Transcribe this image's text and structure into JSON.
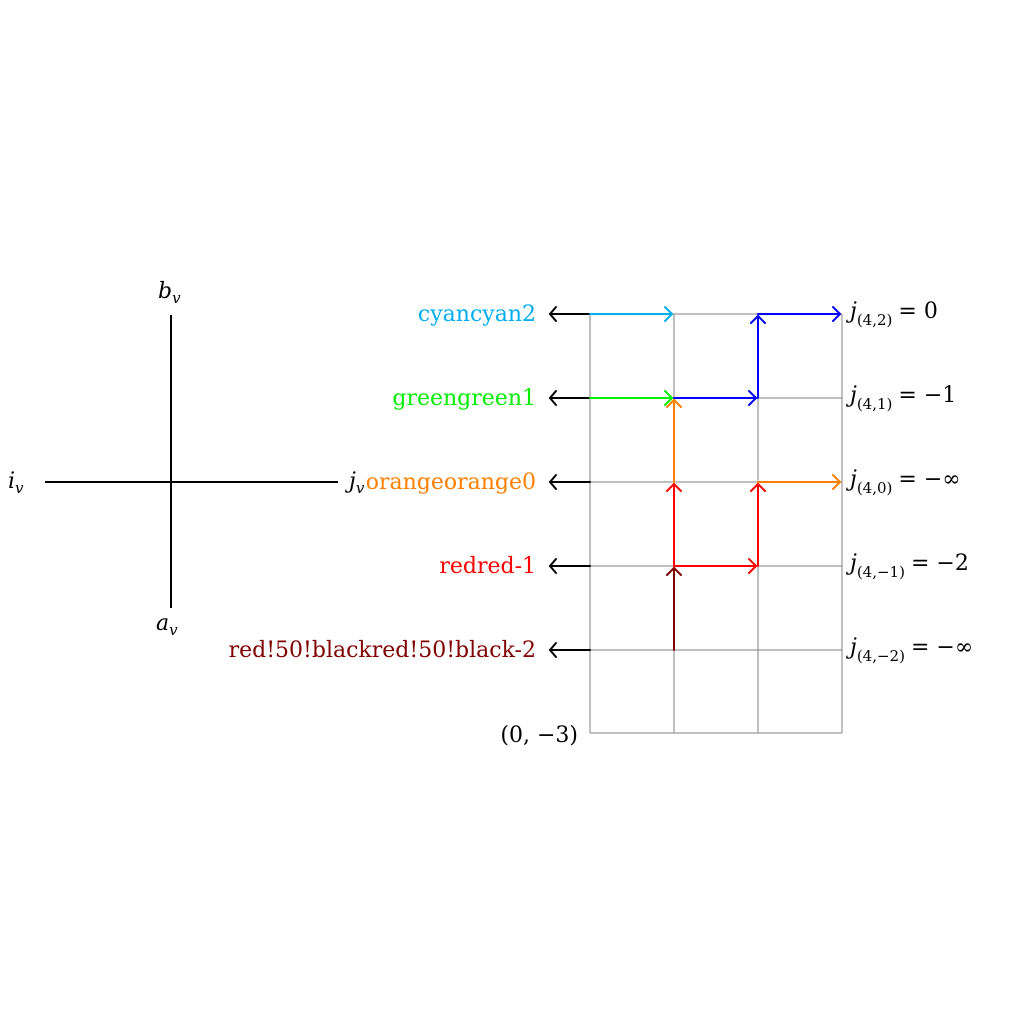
{
  "vertex": {
    "top_label": "b",
    "top_sub": "v",
    "bottom_label": "a",
    "bottom_sub": "v",
    "left_label": "i",
    "left_sub": "v",
    "right_label": "j",
    "right_sub": "v"
  },
  "grid_origin_label": "(0, −3)",
  "row_labels": [
    {
      "text": "cyancyan2",
      "color": "#00aeef"
    },
    {
      "text": "greengreen1",
      "color": "#00ee00"
    },
    {
      "text": "orangeorange0",
      "color": "#ff8000"
    },
    {
      "text": "redred-1",
      "color": "#ff0000"
    },
    {
      "text": "red!50!blackred!50!black-2",
      "color": "#800000"
    }
  ],
  "right_labels": [
    {
      "base": "j",
      "sub": "(4,2)",
      "rhs": "= 0"
    },
    {
      "base": "j",
      "sub": "(4,1)",
      "rhs": "= −1"
    },
    {
      "base": "j",
      "sub": "(4,0)",
      "rhs": "= −∞"
    },
    {
      "base": "j",
      "sub": "(4,−1)",
      "rhs": "= −2"
    },
    {
      "base": "j",
      "sub": "(4,−2)",
      "rhs": "= −∞"
    }
  ],
  "colors": {
    "cyan": "#00aeef",
    "green": "#00ee00",
    "orange": "#ff8000",
    "red": "#ff0000",
    "darkred": "#800000",
    "blue": "#0000ff",
    "grid": "#808080",
    "axis": "#000000"
  }
}
